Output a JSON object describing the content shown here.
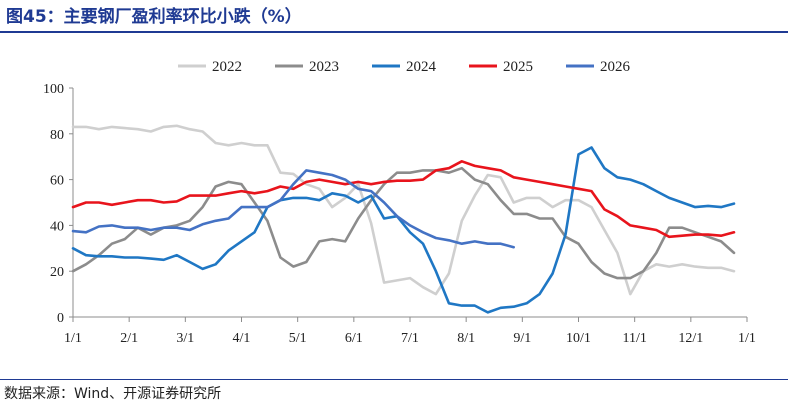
{
  "figure": {
    "title": "图45：主要钢厂盈利率环比小跌（%）",
    "source": "数据来源：Wind、开源证券研究所",
    "accent_color": "#1F3A93"
  },
  "chart_data": {
    "type": "line",
    "title": "图45：主要钢厂盈利率环比小跌（%）",
    "xlabel": "",
    "ylabel": "",
    "x_ticks": [
      "1/1",
      "2/1",
      "3/1",
      "4/1",
      "5/1",
      "6/1",
      "7/1",
      "8/1",
      "9/1",
      "10/1",
      "11/1",
      "12/1",
      "1/1"
    ],
    "ylim": [
      0,
      100
    ],
    "y_ticks": [
      0,
      20,
      40,
      60,
      80,
      100
    ],
    "grid": false,
    "legend_position": "top",
    "x_unit": "week of year (0 = 1/1, 52 = next 1/1)",
    "series": [
      {
        "name": "2022",
        "color": "#CFCFCF",
        "points": [
          [
            0,
            83
          ],
          [
            1,
            83
          ],
          [
            2,
            82
          ],
          [
            3,
            83
          ],
          [
            4,
            82.5
          ],
          [
            5,
            82
          ],
          [
            6,
            81
          ],
          [
            7,
            83
          ],
          [
            8,
            83.5
          ],
          [
            9,
            82
          ],
          [
            10,
            81
          ],
          [
            11,
            76
          ],
          [
            12,
            75
          ],
          [
            13,
            76
          ],
          [
            14,
            75
          ],
          [
            15,
            75
          ],
          [
            16,
            63
          ],
          [
            17,
            62.5
          ],
          [
            18,
            58
          ],
          [
            19,
            56
          ],
          [
            20,
            48
          ],
          [
            21,
            52
          ],
          [
            22,
            58
          ],
          [
            23,
            41
          ],
          [
            24,
            15
          ],
          [
            25,
            16
          ],
          [
            26,
            17
          ],
          [
            27,
            13
          ],
          [
            28,
            10
          ],
          [
            29,
            19
          ],
          [
            30,
            42
          ],
          [
            31,
            53
          ],
          [
            32,
            62
          ],
          [
            33,
            61
          ],
          [
            34,
            50
          ],
          [
            35,
            52
          ],
          [
            36,
            52
          ],
          [
            37,
            48
          ],
          [
            38,
            51
          ],
          [
            39,
            51
          ],
          [
            40,
            48
          ],
          [
            41,
            38
          ],
          [
            42,
            28
          ],
          [
            43,
            10
          ],
          [
            44,
            20
          ],
          [
            45,
            23
          ],
          [
            46,
            22
          ],
          [
            47,
            23
          ],
          [
            48,
            22
          ],
          [
            49,
            21.5
          ],
          [
            50,
            21.5
          ],
          [
            51,
            20
          ]
        ]
      },
      {
        "name": "2023",
        "color": "#8C8C8C",
        "points": [
          [
            0,
            20
          ],
          [
            1,
            23
          ],
          [
            2,
            27
          ],
          [
            3,
            32
          ],
          [
            4,
            34
          ],
          [
            5,
            39
          ],
          [
            6,
            36
          ],
          [
            7,
            39
          ],
          [
            8,
            40
          ],
          [
            9,
            42
          ],
          [
            10,
            48
          ],
          [
            11,
            57
          ],
          [
            12,
            59
          ],
          [
            13,
            58
          ],
          [
            14,
            50
          ],
          [
            15,
            42
          ],
          [
            16,
            26
          ],
          [
            17,
            22
          ],
          [
            18,
            24
          ],
          [
            19,
            33
          ],
          [
            20,
            34
          ],
          [
            21,
            33
          ],
          [
            22,
            43
          ],
          [
            23,
            51
          ],
          [
            24,
            58
          ],
          [
            25,
            63
          ],
          [
            26,
            63
          ],
          [
            27,
            64
          ],
          [
            28,
            64
          ],
          [
            29,
            63
          ],
          [
            30,
            65
          ],
          [
            31,
            60
          ],
          [
            32,
            58
          ],
          [
            33,
            51
          ],
          [
            34,
            45
          ],
          [
            35,
            45
          ],
          [
            36,
            43
          ],
          [
            37,
            43
          ],
          [
            38,
            35
          ],
          [
            39,
            32
          ],
          [
            40,
            24
          ],
          [
            41,
            19
          ],
          [
            42,
            17
          ],
          [
            43,
            17
          ],
          [
            44,
            20
          ],
          [
            45,
            28
          ],
          [
            46,
            39
          ],
          [
            47,
            39
          ],
          [
            48,
            37
          ],
          [
            49,
            35
          ],
          [
            50,
            33
          ],
          [
            51,
            28
          ]
        ]
      },
      {
        "name": "2024",
        "color": "#1F77C4",
        "points": [
          [
            0,
            30
          ],
          [
            1,
            27
          ],
          [
            2,
            26.5
          ],
          [
            3,
            26.5
          ],
          [
            4,
            26
          ],
          [
            5,
            26
          ],
          [
            6,
            25.5
          ],
          [
            7,
            25
          ],
          [
            8,
            27
          ],
          [
            9,
            24
          ],
          [
            10,
            21
          ],
          [
            11,
            23
          ],
          [
            12,
            29
          ],
          [
            13,
            33
          ],
          [
            14,
            37
          ],
          [
            15,
            48
          ],
          [
            16,
            51
          ],
          [
            17,
            52
          ],
          [
            18,
            52
          ],
          [
            19,
            51
          ],
          [
            20,
            54
          ],
          [
            21,
            53
          ],
          [
            22,
            50
          ],
          [
            23,
            53
          ],
          [
            24,
            43
          ],
          [
            25,
            44
          ],
          [
            26,
            37
          ],
          [
            27,
            32
          ],
          [
            28,
            20
          ],
          [
            29,
            6
          ],
          [
            30,
            5
          ],
          [
            31,
            5
          ],
          [
            32,
            2
          ],
          [
            33,
            4
          ],
          [
            34,
            4.5
          ],
          [
            35,
            6
          ],
          [
            36,
            10
          ],
          [
            37,
            19
          ],
          [
            38,
            36
          ],
          [
            39,
            71
          ],
          [
            40,
            74
          ],
          [
            41,
            65
          ],
          [
            42,
            61
          ],
          [
            43,
            60
          ],
          [
            44,
            58
          ],
          [
            45,
            55
          ],
          [
            46,
            52
          ],
          [
            47,
            50
          ],
          [
            48,
            48
          ],
          [
            49,
            48.5
          ],
          [
            50,
            48
          ],
          [
            51,
            49.5
          ]
        ]
      },
      {
        "name": "2025",
        "color": "#E8141C",
        "points": [
          [
            0,
            48
          ],
          [
            1,
            50
          ],
          [
            2,
            50
          ],
          [
            3,
            49
          ],
          [
            4,
            50
          ],
          [
            5,
            51
          ],
          [
            6,
            51
          ],
          [
            7,
            50
          ],
          [
            8,
            50.5
          ],
          [
            9,
            53
          ],
          [
            10,
            53
          ],
          [
            11,
            53
          ],
          [
            12,
            54
          ],
          [
            13,
            55
          ],
          [
            14,
            54
          ],
          [
            15,
            55
          ],
          [
            16,
            57
          ],
          [
            17,
            56
          ],
          [
            18,
            59
          ],
          [
            19,
            60
          ],
          [
            20,
            59
          ],
          [
            21,
            58
          ],
          [
            22,
            59
          ],
          [
            23,
            58
          ],
          [
            24,
            59
          ],
          [
            25,
            59.5
          ],
          [
            26,
            59.5
          ],
          [
            27,
            60
          ],
          [
            28,
            64
          ],
          [
            29,
            65
          ],
          [
            30,
            68
          ],
          [
            31,
            66
          ],
          [
            32,
            65
          ],
          [
            33,
            64
          ],
          [
            34,
            61
          ],
          [
            35,
            60
          ],
          [
            36,
            59
          ],
          [
            37,
            58
          ],
          [
            38,
            57
          ],
          [
            39,
            56
          ],
          [
            40,
            55
          ],
          [
            41,
            47
          ],
          [
            42,
            44
          ],
          [
            43,
            40
          ],
          [
            44,
            39
          ],
          [
            45,
            38
          ],
          [
            46,
            35
          ],
          [
            47,
            35.5
          ],
          [
            48,
            36
          ],
          [
            49,
            36
          ],
          [
            50,
            35.5
          ],
          [
            51,
            37
          ]
        ]
      },
      {
        "name": "2026",
        "color": "#4472C4",
        "points": [
          [
            0,
            37.5
          ],
          [
            1,
            37
          ],
          [
            2,
            39.5
          ],
          [
            3,
            40
          ],
          [
            4,
            39
          ],
          [
            5,
            39
          ],
          [
            6,
            38
          ],
          [
            7,
            39
          ],
          [
            8,
            39
          ],
          [
            9,
            38
          ],
          [
            10,
            40.5
          ],
          [
            11,
            42
          ],
          [
            12,
            43
          ],
          [
            13,
            48
          ],
          [
            14,
            48
          ],
          [
            15,
            48
          ],
          [
            16,
            51
          ],
          [
            17,
            58
          ],
          [
            18,
            64
          ],
          [
            19,
            63
          ],
          [
            20,
            62
          ],
          [
            21,
            60
          ],
          [
            22,
            56
          ],
          [
            23,
            55
          ],
          [
            24,
            50
          ],
          [
            25,
            44
          ],
          [
            26,
            40
          ],
          [
            27,
            37
          ],
          [
            28,
            34.5
          ],
          [
            29,
            33.5
          ],
          [
            30,
            32
          ],
          [
            31,
            33
          ],
          [
            32,
            32
          ],
          [
            33,
            32
          ],
          [
            34,
            30.5
          ]
        ]
      }
    ]
  }
}
